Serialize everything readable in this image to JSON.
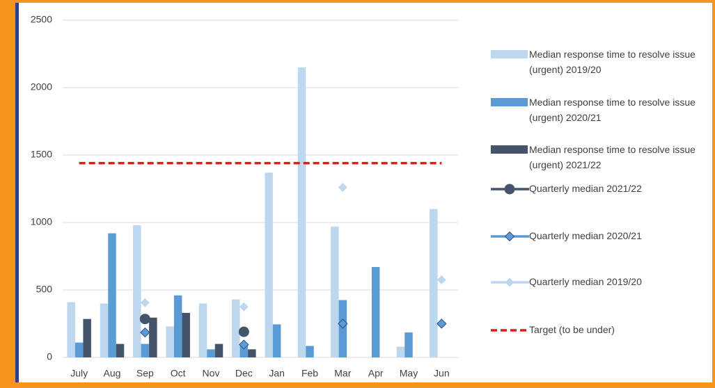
{
  "chart_data": {
    "type": "bar",
    "categories": [
      "July",
      "Aug",
      "Sep",
      "Oct",
      "Nov",
      "Dec",
      "Jan",
      "Feb",
      "Mar",
      "Apr",
      "May",
      "Jun"
    ],
    "series": [
      {
        "name": "Median response time to resolve issue (urgent) 2019/20",
        "kind": "bar",
        "color": "#BDD7EE",
        "values": [
          410,
          400,
          980,
          230,
          400,
          430,
          1370,
          2150,
          970,
          null,
          80,
          1100
        ]
      },
      {
        "name": "Median response time to resolve issue (urgent) 2020/21",
        "kind": "bar",
        "color": "#5B9BD5",
        "values": [
          110,
          920,
          100,
          460,
          60,
          90,
          245,
          85,
          425,
          670,
          185,
          null
        ]
      },
      {
        "name": "Median response time to resolve issue (urgent) 2021/22",
        "kind": "bar",
        "color": "#44546A",
        "values": [
          285,
          100,
          295,
          330,
          100,
          60,
          null,
          null,
          null,
          null,
          null,
          null
        ]
      },
      {
        "name": "Quarterly median 2021/22",
        "kind": "line",
        "marker": "circle",
        "color": "#44546A",
        "values": [
          null,
          null,
          285,
          null,
          null,
          190,
          null,
          null,
          null,
          null,
          null,
          null
        ]
      },
      {
        "name": "Quarterly median 2020/21",
        "kind": "line",
        "marker": "diamond",
        "color": "#5B9BD5",
        "values": [
          null,
          null,
          185,
          null,
          null,
          95,
          null,
          null,
          250,
          null,
          null,
          250
        ]
      },
      {
        "name": "Quarterly median 2019/20",
        "kind": "line",
        "marker": "diamond",
        "color": "#BDD7EE",
        "values": [
          null,
          null,
          405,
          null,
          null,
          375,
          null,
          null,
          1260,
          null,
          null,
          575
        ]
      }
    ],
    "target": {
      "name": "Target (to be under)",
      "value": 1440,
      "color": "#E31A1C"
    },
    "ylim": [
      0,
      2500
    ],
    "yticks": [
      0,
      500,
      1000,
      1500,
      2000,
      2500
    ],
    "grid": true
  }
}
